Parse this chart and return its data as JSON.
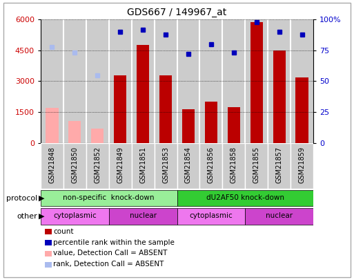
{
  "title": "GDS667 / 149967_at",
  "samples": [
    "GSM21848",
    "GSM21850",
    "GSM21852",
    "GSM21849",
    "GSM21851",
    "GSM21853",
    "GSM21854",
    "GSM21856",
    "GSM21858",
    "GSM21855",
    "GSM21857",
    "GSM21859"
  ],
  "bar_values": [
    1700,
    1050,
    680,
    3280,
    4780,
    3280,
    1620,
    2000,
    1730,
    5880,
    4480,
    3180
  ],
  "bar_absent": [
    true,
    true,
    true,
    false,
    false,
    false,
    false,
    false,
    false,
    false,
    false,
    false
  ],
  "rank_values": [
    78,
    73,
    55,
    90,
    92,
    88,
    72,
    80,
    73,
    98,
    90,
    88
  ],
  "rank_absent": [
    true,
    true,
    true,
    false,
    false,
    false,
    false,
    false,
    false,
    false,
    false,
    false
  ],
  "ylim_left": [
    0,
    6000
  ],
  "ylim_right": [
    0,
    100
  ],
  "yticks_left": [
    0,
    1500,
    3000,
    4500,
    6000
  ],
  "yticks_right": [
    0,
    25,
    50,
    75,
    100
  ],
  "protocol_groups": [
    {
      "label": "non-specific  knock-down",
      "start": 0,
      "end": 6,
      "color": "#99ee99"
    },
    {
      "label": "dU2AF50 knock-down",
      "start": 6,
      "end": 12,
      "color": "#33cc33"
    }
  ],
  "other_groups": [
    {
      "label": "cytoplasmic",
      "start": 0,
      "end": 3,
      "color": "#ee77ee"
    },
    {
      "label": "nuclear",
      "start": 3,
      "end": 6,
      "color": "#cc44cc"
    },
    {
      "label": "cytoplasmic",
      "start": 6,
      "end": 9,
      "color": "#ee77ee"
    },
    {
      "label": "nuclear",
      "start": 9,
      "end": 12,
      "color": "#cc44cc"
    }
  ],
  "bar_color_present": "#bb0000",
  "bar_color_absent": "#ffaaaa",
  "rank_color_present": "#0000bb",
  "rank_color_absent": "#aabbee",
  "bar_width": 0.55,
  "bg_color": "#ffffff",
  "axis_bg": "#ffffff",
  "grid_color": "#000000",
  "left_label_color": "#cc0000",
  "right_label_color": "#0000cc",
  "col_bg": "#cccccc",
  "legend_items": [
    {
      "label": "count",
      "color": "#bb0000"
    },
    {
      "label": "percentile rank within the sample",
      "color": "#0000bb"
    },
    {
      "label": "value, Detection Call = ABSENT",
      "color": "#ffaaaa"
    },
    {
      "label": "rank, Detection Call = ABSENT",
      "color": "#aabbee"
    }
  ]
}
